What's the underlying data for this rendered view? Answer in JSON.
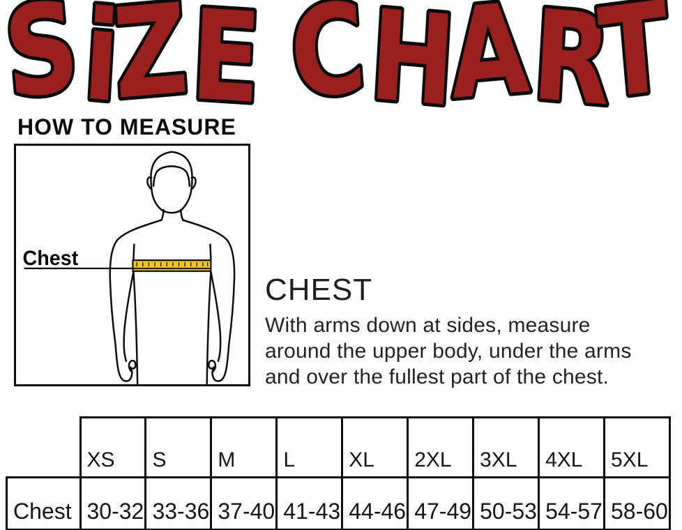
{
  "title": "SiZE CHART",
  "colors": {
    "title_red": "#9A1F1F",
    "outline_black": "#0c0c0c",
    "tape_yellow": "#F5C51C"
  },
  "how_to_measure": {
    "heading": "HOW TO MEASURE"
  },
  "figure": {
    "label": "Chest"
  },
  "chest_section": {
    "heading": "CHEST",
    "lines": [
      "With arms down at sides, measure",
      "around the upper body, under the arms",
      "and over the fullest part of the chest."
    ]
  },
  "size_table": {
    "row_label": "Chest",
    "sizes": [
      "XS",
      "S",
      "M",
      "L",
      "XL",
      "2XL",
      "3XL",
      "4XL",
      "5XL"
    ],
    "ranges": [
      "30-32",
      "33-36",
      "37-40",
      "41-43",
      "44-46",
      "47-49",
      "50-53",
      "54-57",
      "58-60"
    ]
  }
}
